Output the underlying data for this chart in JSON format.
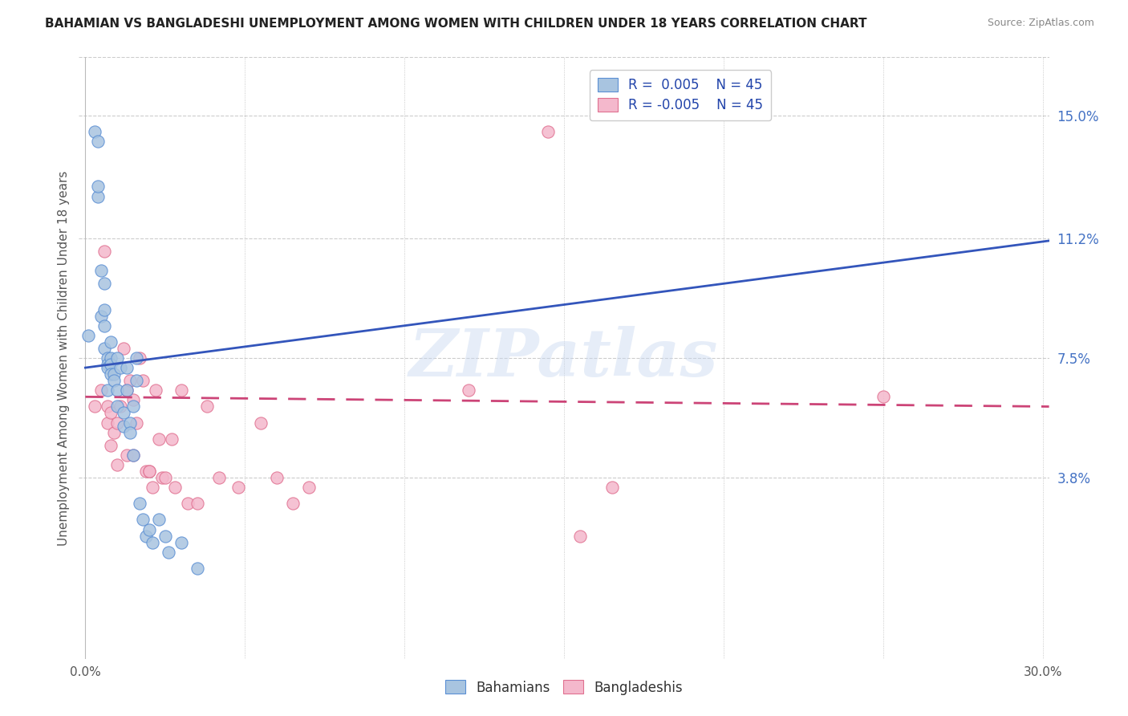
{
  "title": "BAHAMIAN VS BANGLADESHI UNEMPLOYMENT AMONG WOMEN WITH CHILDREN UNDER 18 YEARS CORRELATION CHART",
  "source": "Source: ZipAtlas.com",
  "ylabel": "Unemployment Among Women with Children Under 18 years",
  "xlim": [
    -0.002,
    0.302
  ],
  "ylim": [
    -0.018,
    0.168
  ],
  "xticks": [
    0.0,
    0.05,
    0.1,
    0.15,
    0.2,
    0.25,
    0.3
  ],
  "xticklabels": [
    "0.0%",
    "",
    "",
    "",
    "",
    "",
    "30.0%"
  ],
  "yticks_right": [
    0.038,
    0.075,
    0.112,
    0.15
  ],
  "ytick_labels_right": [
    "3.8%",
    "7.5%",
    "11.2%",
    "15.0%"
  ],
  "bahamian_color": "#a8c4e0",
  "bangladeshi_color": "#f4b8cc",
  "bahamian_edge_color": "#5b8fd4",
  "bangladeshi_edge_color": "#e07090",
  "bahamian_line_color": "#3355bb",
  "bangladeshi_line_color": "#cc4477",
  "watermark": "ZIPatlas",
  "background_color": "#ffffff",
  "grid_color": "#cccccc",
  "bahamian_x": [
    0.001,
    0.003,
    0.004,
    0.004,
    0.005,
    0.005,
    0.006,
    0.006,
    0.006,
    0.007,
    0.007,
    0.007,
    0.007,
    0.008,
    0.008,
    0.008,
    0.009,
    0.009,
    0.01,
    0.01,
    0.011,
    0.012,
    0.012,
    0.013,
    0.013,
    0.014,
    0.014,
    0.015,
    0.015,
    0.016,
    0.016,
    0.017,
    0.018,
    0.019,
    0.02,
    0.021,
    0.023,
    0.025,
    0.026,
    0.03,
    0.035,
    0.004,
    0.006,
    0.008,
    0.01
  ],
  "bahamian_y": [
    0.082,
    0.145,
    0.142,
    0.125,
    0.102,
    0.088,
    0.09,
    0.085,
    0.078,
    0.075,
    0.073,
    0.072,
    0.065,
    0.075,
    0.073,
    0.07,
    0.07,
    0.068,
    0.065,
    0.06,
    0.072,
    0.058,
    0.054,
    0.072,
    0.065,
    0.055,
    0.052,
    0.06,
    0.045,
    0.075,
    0.068,
    0.03,
    0.025,
    0.02,
    0.022,
    0.018,
    0.025,
    0.02,
    0.015,
    0.018,
    0.01,
    0.128,
    0.098,
    0.08,
    0.075
  ],
  "bangladeshi_x": [
    0.003,
    0.005,
    0.006,
    0.007,
    0.007,
    0.008,
    0.009,
    0.01,
    0.011,
    0.012,
    0.013,
    0.013,
    0.014,
    0.015,
    0.016,
    0.017,
    0.018,
    0.019,
    0.02,
    0.021,
    0.022,
    0.023,
    0.024,
    0.025,
    0.027,
    0.028,
    0.03,
    0.032,
    0.035,
    0.038,
    0.042,
    0.048,
    0.055,
    0.06,
    0.065,
    0.07,
    0.12,
    0.145,
    0.155,
    0.165,
    0.25,
    0.008,
    0.01,
    0.015,
    0.02
  ],
  "bangladeshi_y": [
    0.06,
    0.065,
    0.108,
    0.06,
    0.055,
    0.058,
    0.052,
    0.055,
    0.06,
    0.078,
    0.065,
    0.045,
    0.068,
    0.062,
    0.055,
    0.075,
    0.068,
    0.04,
    0.04,
    0.035,
    0.065,
    0.05,
    0.038,
    0.038,
    0.05,
    0.035,
    0.065,
    0.03,
    0.03,
    0.06,
    0.038,
    0.035,
    0.055,
    0.038,
    0.03,
    0.035,
    0.065,
    0.145,
    0.02,
    0.035,
    0.063,
    0.048,
    0.042,
    0.045,
    0.04
  ]
}
